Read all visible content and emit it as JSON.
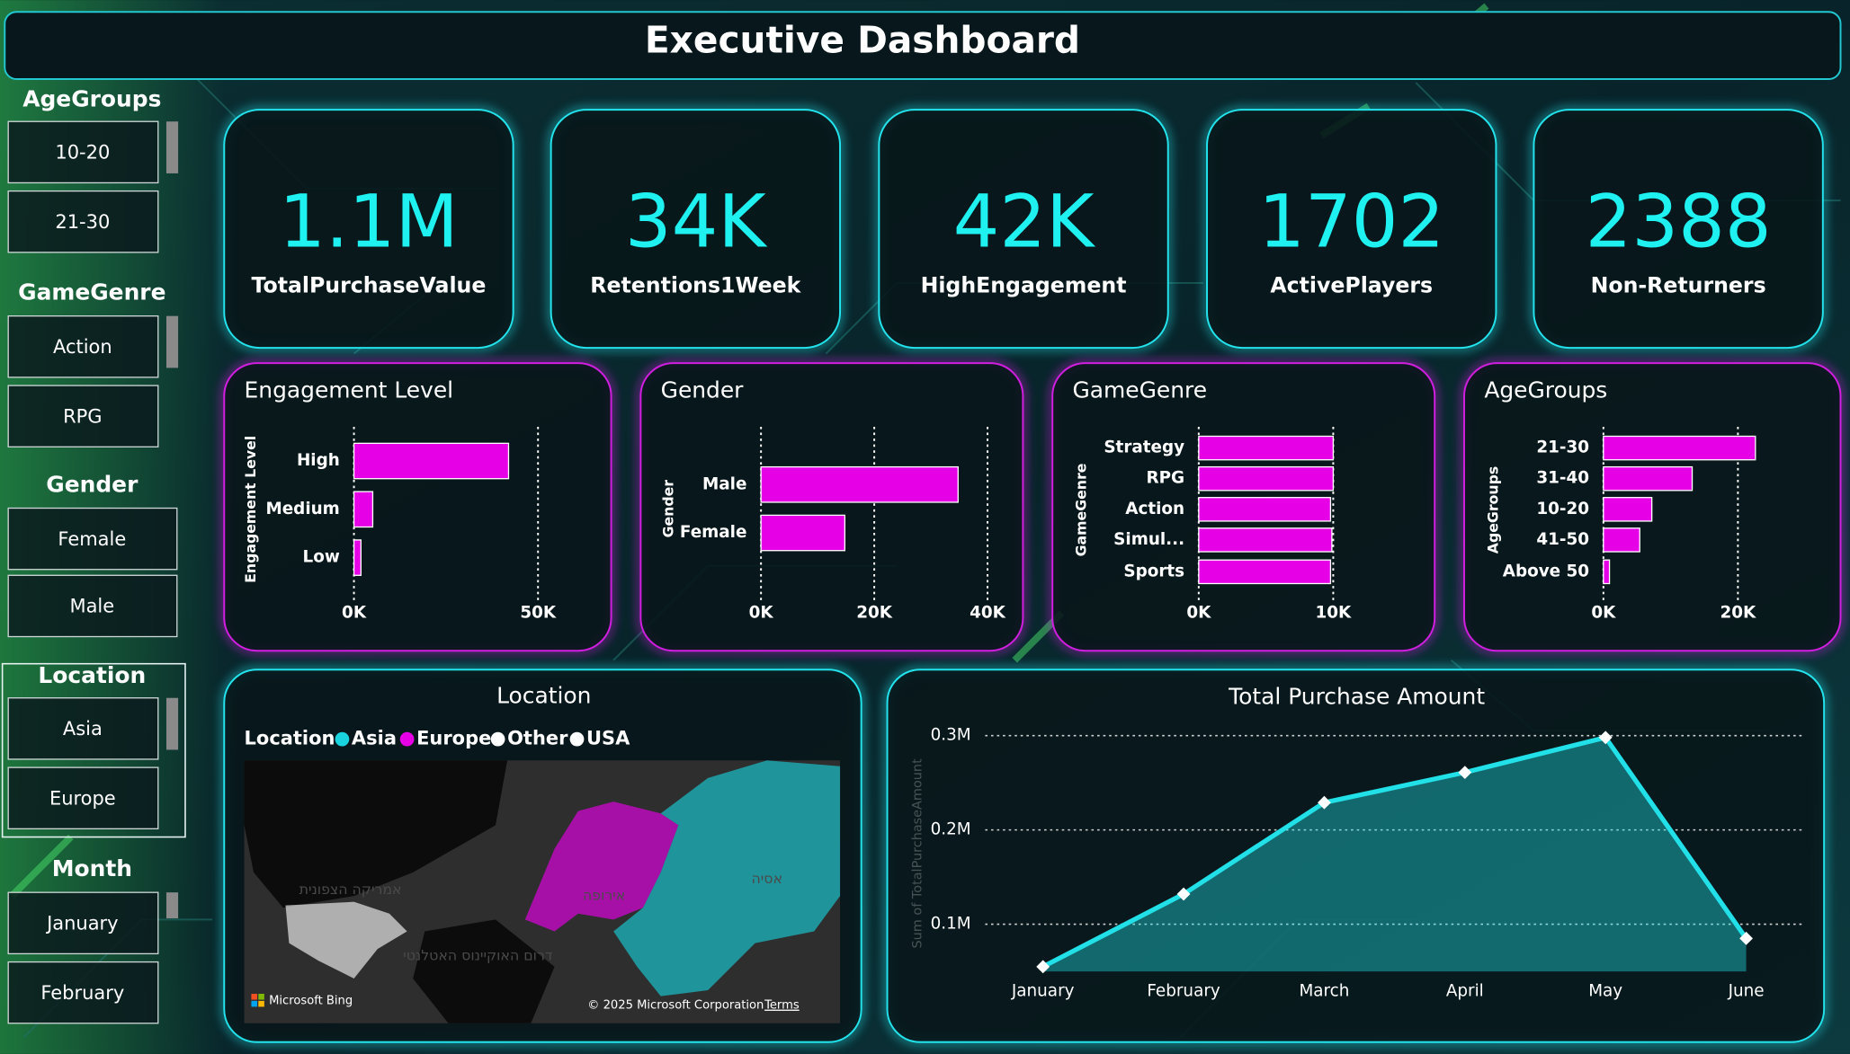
{
  "header": {
    "title": "Executive Dashboard"
  },
  "slicers": [
    {
      "title": "AgeGroups",
      "items": [
        "10-20",
        "21-30"
      ]
    },
    {
      "title": "GameGenre",
      "items": [
        "Action",
        "RPG"
      ]
    },
    {
      "title": "Gender",
      "items": [
        "Female",
        "Male"
      ]
    },
    {
      "title": "Location",
      "items": [
        "Asia",
        "Europe"
      ]
    },
    {
      "title": "Month",
      "items": [
        "January",
        "February"
      ]
    }
  ],
  "kpis": [
    {
      "value": "1.1M",
      "label": "TotalPurchaseValue"
    },
    {
      "value": "34K",
      "label": "Retentions1Week"
    },
    {
      "value": "42K",
      "label": "HighEngagement"
    },
    {
      "value": "1702",
      "label": "ActivePlayers"
    },
    {
      "value": "2388",
      "label": "Non-Returners"
    }
  ],
  "chart_data": [
    {
      "type": "bar",
      "orientation": "horizontal",
      "title": "Engagement Level",
      "y_label": "Engagement Level",
      "categories": [
        "High",
        "Medium",
        "Low"
      ],
      "values": [
        42000,
        5100,
        1900
      ],
      "color": "#e600e6",
      "xlim": [
        0,
        50000
      ],
      "xticks": [
        {
          "value": 0,
          "label": "0K"
        },
        {
          "value": 50000,
          "label": "50K"
        }
      ],
      "grid": true
    },
    {
      "type": "bar",
      "orientation": "horizontal",
      "title": "Gender",
      "y_label": "Gender",
      "categories": [
        "Male",
        "Female"
      ],
      "values": [
        34800,
        14800
      ],
      "color": "#e600e6",
      "xlim": [
        0,
        40000
      ],
      "xticks": [
        {
          "value": 0,
          "label": "0K"
        },
        {
          "value": 20000,
          "label": "20K"
        },
        {
          "value": 40000,
          "label": "40K"
        }
      ],
      "grid": true
    },
    {
      "type": "bar",
      "orientation": "horizontal",
      "title": "GameGenre",
      "y_label": "GameGenre",
      "categories": [
        "Strategy",
        "RPG",
        "Action",
        "Simul...",
        "Sports"
      ],
      "values": [
        10000,
        10000,
        9800,
        9900,
        9800
      ],
      "color": "#e600e6",
      "xlim": [
        0,
        10000
      ],
      "xticks": [
        {
          "value": 0,
          "label": "0K"
        },
        {
          "value": 10000,
          "label": "10K"
        }
      ],
      "grid": true
    },
    {
      "type": "bar",
      "orientation": "horizontal",
      "title": "AgeGroups",
      "y_label": "AgeGroups",
      "categories": [
        "21-30",
        "31-40",
        "10-20",
        "41-50",
        "Above 50"
      ],
      "values": [
        22600,
        13200,
        7200,
        5400,
        900
      ],
      "color": "#e600e6",
      "xlim": [
        0,
        25000
      ],
      "xticks": [
        {
          "value": 0,
          "label": "0K"
        },
        {
          "value": 20000,
          "label": "20K"
        }
      ],
      "grid": true
    },
    {
      "type": "map",
      "title": "Location",
      "legend_title": "Location",
      "categories": [
        "Asia",
        "Europe",
        "Other",
        "USA"
      ],
      "colors": [
        "#19d3df",
        "#e600e6",
        "#ffffff",
        "#ffffff"
      ],
      "map_labels": [
        "אמריקה הצפונית",
        "אירופה",
        "אסיה",
        "דרום האוקיינוס האטלנטי"
      ],
      "attribution": "Microsoft Bing",
      "copyright": "© 2025 Microsoft Corporation",
      "terms": "Terms"
    },
    {
      "type": "line",
      "title": "Total Purchase Amount",
      "y_label": "Sum of TotalPurchaseAmount",
      "categories": [
        "January",
        "February",
        "March",
        "April",
        "May",
        "June"
      ],
      "values": [
        55000,
        132000,
        229000,
        261000,
        298000,
        85000
      ],
      "color": "#22e0e8",
      "area": true,
      "ylim": [
        50000,
        300000
      ],
      "yticks": [
        {
          "value": 100000,
          "label": "0.1M"
        },
        {
          "value": 200000,
          "label": "0.2M"
        },
        {
          "value": 300000,
          "label": "0.3M"
        }
      ],
      "grid": true
    }
  ]
}
